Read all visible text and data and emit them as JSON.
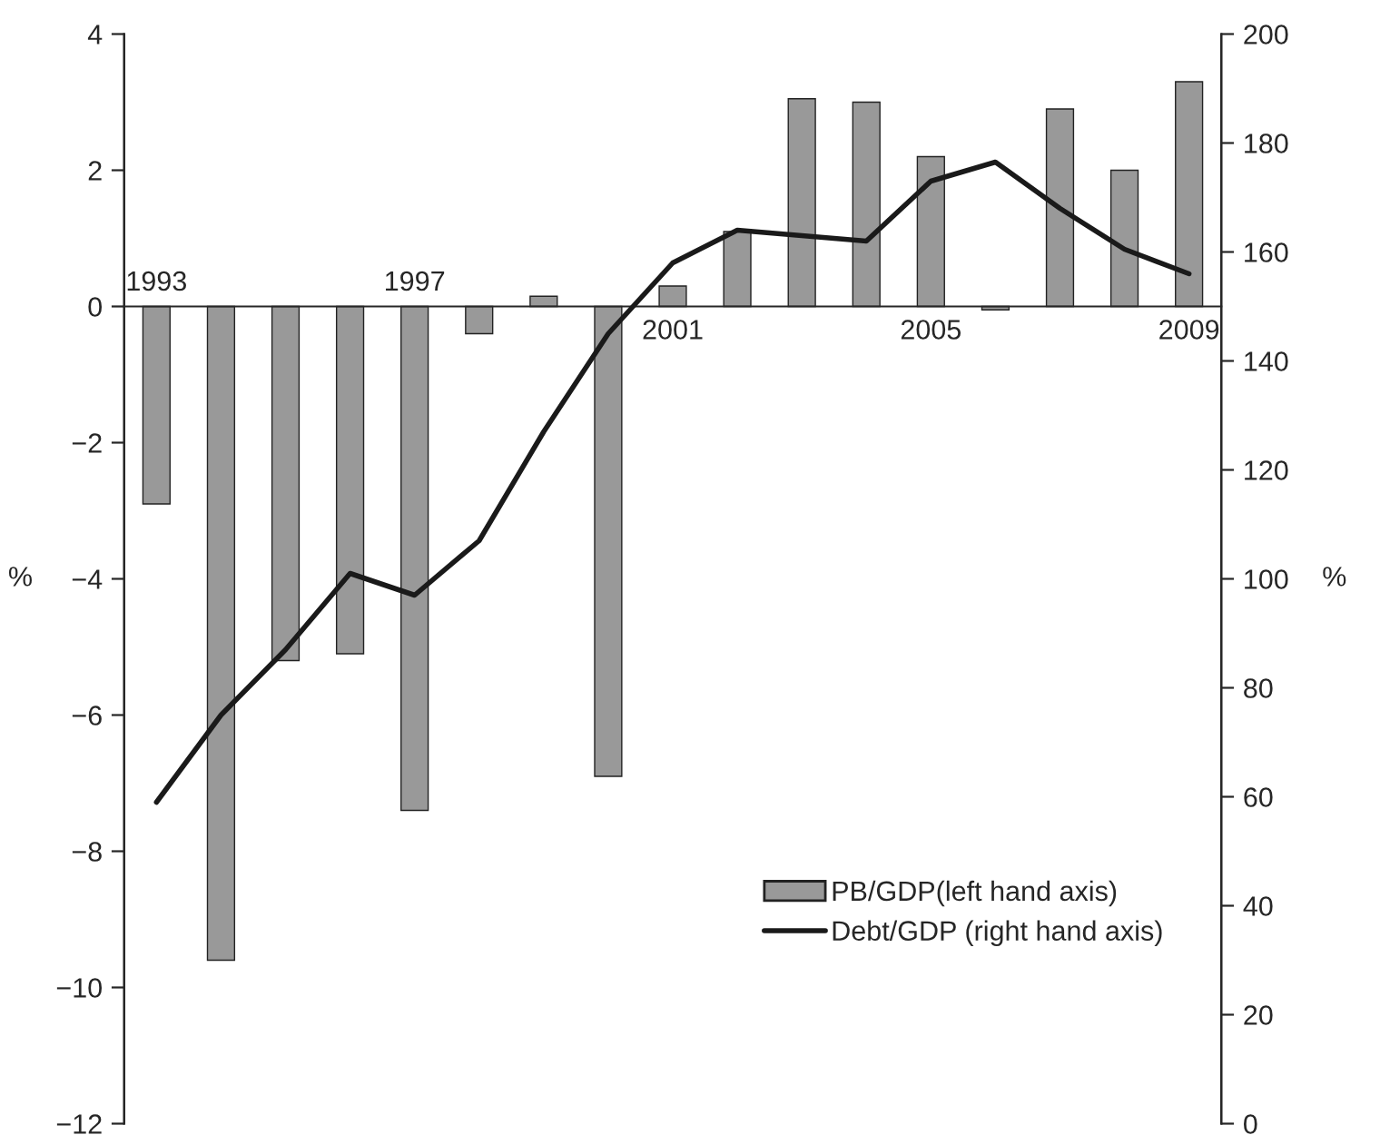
{
  "chart_data": {
    "type": "bar",
    "categories": [
      "1993",
      null,
      null,
      null,
      "1997",
      null,
      null,
      null,
      "2001",
      null,
      null,
      null,
      "2005",
      null,
      null,
      null,
      "2009"
    ],
    "series": [
      {
        "name": "PB/GDP(left hand axis)",
        "color": "#999999",
        "values": [
          -2.9,
          -9.6,
          -5.2,
          -5.1,
          -7.4,
          -0.4,
          0.15,
          -6.9,
          0.3,
          1.1,
          3.05,
          3.0,
          2.2,
          -0.05,
          2.9,
          2.0,
          3.3
        ]
      },
      {
        "name": "Debt/GDP (right hand axis)",
        "type": "line",
        "axis": "y2",
        "color": "#1a1a1a",
        "values": [
          59,
          75,
          87,
          101,
          97,
          107,
          127,
          145,
          158,
          164,
          163,
          162,
          173,
          176.5,
          168,
          160.5,
          156
        ]
      }
    ],
    "ylabel": "%",
    "y2label": "%",
    "ylim": [
      -12,
      4
    ],
    "yticks": [
      {
        "value": -12,
        "label": "−12"
      },
      {
        "value": -10,
        "label": "−10"
      },
      {
        "value": -8,
        "label": "−8"
      },
      {
        "value": -6,
        "label": "−6"
      },
      {
        "value": -4,
        "label": "−4"
      },
      {
        "value": -2,
        "label": "−2"
      },
      0,
      2,
      4
    ],
    "y2lim": [
      0,
      200
    ],
    "y2ticks": [
      0,
      20,
      40,
      60,
      80,
      100,
      120,
      140,
      160,
      180,
      200
    ],
    "legend": "bottom right",
    "grid": false
  }
}
